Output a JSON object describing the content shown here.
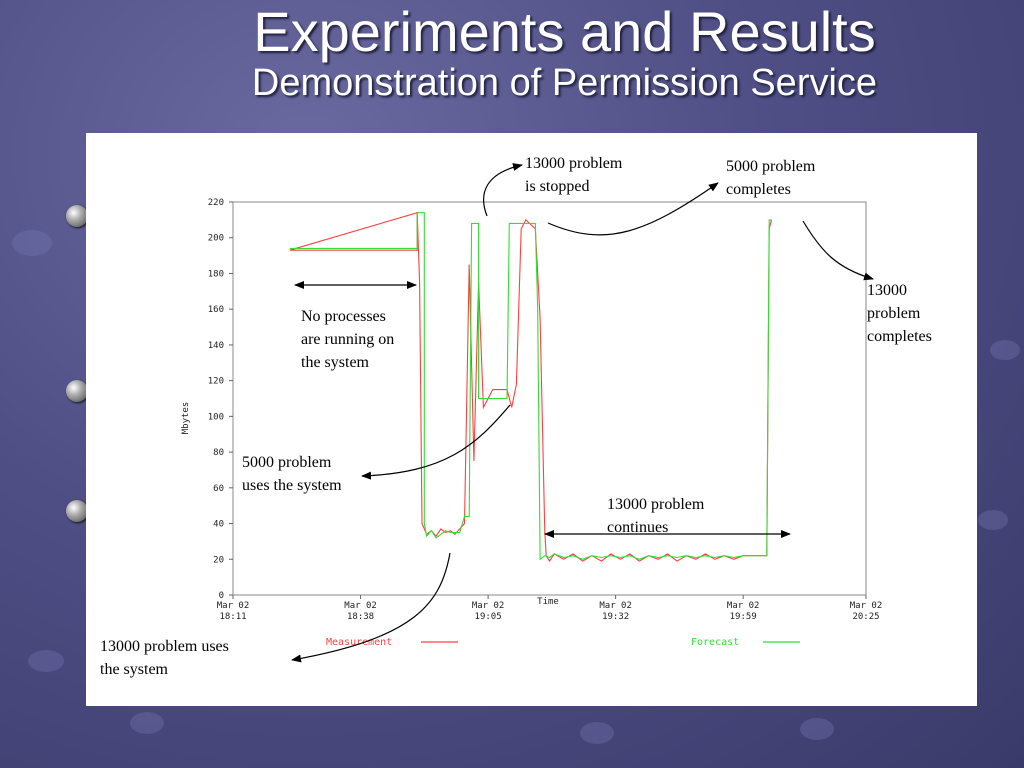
{
  "slide": {
    "title": "Experiments and Results",
    "subtitle": "Demonstration of Permission Service"
  },
  "colors": {
    "measurement": "#ff4040",
    "forecast": "#33dd33",
    "background": "#4f4f86"
  },
  "chart_data": {
    "type": "line",
    "xlabel": "Time",
    "ylabel": "Mbytes",
    "ylim": [
      0,
      220
    ],
    "yticks": [
      0,
      20,
      40,
      60,
      80,
      100,
      120,
      140,
      160,
      180,
      200,
      220
    ],
    "xlim_minutes": [
      0,
      134
    ],
    "xticks": [
      {
        "label": "Mar 02 18:11",
        "line1": "Mar 02",
        "line2": "18:11",
        "t": 0
      },
      {
        "label": "Mar 02 18:38",
        "line1": "Mar 02",
        "line2": "18:38",
        "t": 27
      },
      {
        "label": "Mar 02 19:05",
        "line1": "Mar 02",
        "line2": "19:05",
        "t": 54
      },
      {
        "label": "Mar 02 19:32",
        "line1": "Mar 02",
        "line2": "19:32",
        "t": 81
      },
      {
        "label": "Mar 02 19:59",
        "line1": "Mar 02",
        "line2": "19:59",
        "t": 108
      },
      {
        "label": "Mar 02 20:25",
        "line1": "Mar 02",
        "line2": "20:25",
        "t": 134
      }
    ],
    "grid": false,
    "legend_position": "bottom",
    "series": [
      {
        "name": "Measurement",
        "color": "#ff4040",
        "points": [
          [
            12,
            193
          ],
          [
            39,
            214
          ],
          [
            39,
            193
          ],
          [
            12,
            193
          ],
          [
            39,
            214
          ],
          [
            39.5,
            175
          ],
          [
            40,
            40
          ],
          [
            41,
            34
          ],
          [
            42,
            36
          ],
          [
            43,
            33
          ],
          [
            44,
            37
          ],
          [
            45,
            35
          ],
          [
            46,
            36
          ],
          [
            47,
            34
          ],
          [
            48,
            37
          ],
          [
            49,
            40
          ],
          [
            50,
            185
          ],
          [
            51,
            75
          ],
          [
            52,
            175
          ],
          [
            53,
            105
          ],
          [
            54,
            110
          ],
          [
            55,
            115
          ],
          [
            58,
            115
          ],
          [
            59,
            105
          ],
          [
            60,
            118
          ],
          [
            61,
            205
          ],
          [
            62,
            210
          ],
          [
            64,
            205
          ],
          [
            65,
            155
          ],
          [
            66,
            35
          ],
          [
            66.3,
            22
          ],
          [
            67,
            19
          ],
          [
            68,
            23
          ],
          [
            70,
            20
          ],
          [
            72,
            23
          ],
          [
            74,
            19
          ],
          [
            76,
            22
          ],
          [
            78,
            19
          ],
          [
            80,
            23
          ],
          [
            82,
            20
          ],
          [
            84,
            23
          ],
          [
            86,
            19
          ],
          [
            88,
            22
          ],
          [
            90,
            20
          ],
          [
            92,
            23
          ],
          [
            94,
            19
          ],
          [
            96,
            22
          ],
          [
            98,
            20
          ],
          [
            100,
            23
          ],
          [
            102,
            20
          ],
          [
            104,
            22
          ],
          [
            106,
            20
          ],
          [
            108,
            22
          ],
          [
            113,
            22
          ],
          [
            113.5,
            205
          ],
          [
            114,
            210
          ]
        ]
      },
      {
        "name": "Forecast",
        "color": "#33dd33",
        "points": [
          [
            12,
            194
          ],
          [
            39,
            194
          ],
          [
            39,
            214
          ],
          [
            40.5,
            214
          ],
          [
            40.5,
            40
          ],
          [
            41,
            33
          ],
          [
            42,
            36
          ],
          [
            43,
            32
          ],
          [
            44,
            34
          ],
          [
            45,
            36
          ],
          [
            46,
            35
          ],
          [
            48,
            35
          ],
          [
            49,
            44
          ],
          [
            50,
            44
          ],
          [
            50.5,
            208
          ],
          [
            52,
            208
          ],
          [
            52,
            110
          ],
          [
            55,
            110
          ],
          [
            58,
            110
          ],
          [
            58.5,
            208
          ],
          [
            60,
            208
          ],
          [
            61,
            208
          ],
          [
            62,
            208
          ],
          [
            63,
            208
          ],
          [
            64,
            208
          ],
          [
            64.5,
            160
          ],
          [
            65,
            20
          ],
          [
            66,
            22
          ],
          [
            67,
            21
          ],
          [
            68,
            23
          ],
          [
            70,
            21
          ],
          [
            72,
            22
          ],
          [
            74,
            20
          ],
          [
            76,
            22
          ],
          [
            78,
            21
          ],
          [
            80,
            22
          ],
          [
            82,
            21
          ],
          [
            84,
            22
          ],
          [
            86,
            20
          ],
          [
            88,
            22
          ],
          [
            90,
            21
          ],
          [
            92,
            22
          ],
          [
            94,
            21
          ],
          [
            96,
            22
          ],
          [
            98,
            21
          ],
          [
            100,
            22
          ],
          [
            102,
            21
          ],
          [
            104,
            22
          ],
          [
            106,
            21
          ],
          [
            108,
            22
          ],
          [
            113,
            22
          ],
          [
            113.5,
            210
          ],
          [
            114,
            210
          ]
        ]
      }
    ],
    "annotations": [
      {
        "lines": [
          "No processes",
          "are running on",
          "the system"
        ]
      },
      {
        "lines": [
          "13000 problem",
          "is stopped"
        ]
      },
      {
        "lines": [
          "5000 problem",
          "completes"
        ]
      },
      {
        "lines": [
          "13000",
          "problem",
          "completes"
        ]
      },
      {
        "lines": [
          "5000 problem",
          "uses the system"
        ]
      },
      {
        "lines": [
          "13000 problem",
          "continues"
        ]
      },
      {
        "lines": [
          "13000 problem uses",
          "the system"
        ]
      }
    ]
  }
}
